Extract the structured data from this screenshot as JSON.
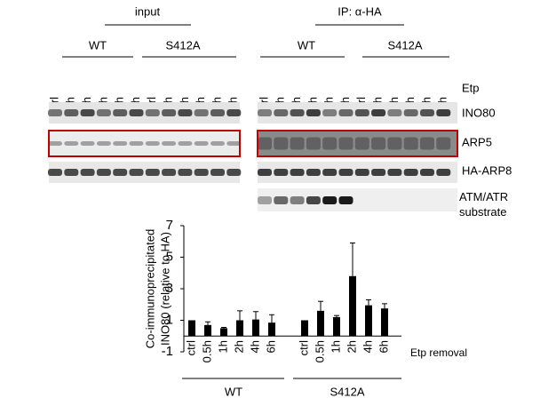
{
  "blots": {
    "header_left": "input",
    "header_right": "IP: α-HA",
    "groups_left": [
      "WT",
      "S412A"
    ],
    "groups_right": [
      "WT",
      "S412A"
    ],
    "lanes": [
      "ctrl",
      "0.5h",
      "1h",
      "2h",
      "4h",
      "6h"
    ],
    "treatment": "Etp",
    "rows": [
      "INO80",
      "ARP5",
      "HA-ARP8",
      "ATM/ATR substrate"
    ]
  },
  "chart_data": {
    "type": "bar",
    "y_label": [
      "Co-immunoprecipitated",
      "INO80 (relative to HA)"
    ],
    "x_label": "Etp removal",
    "categories": [
      "ctrl",
      "0.5h",
      "1h",
      "2h",
      "4h",
      "6h",
      "ctrl",
      "0.5h",
      "1h",
      "2h",
      "4h",
      "6h"
    ],
    "group_labels": [
      "WT",
      "S412A"
    ],
    "values": [
      1.0,
      0.7,
      0.5,
      1.0,
      1.05,
      0.85,
      1.0,
      1.6,
      1.2,
      3.8,
      1.95,
      1.75
    ],
    "errors": [
      0,
      0.2,
      0.05,
      0.6,
      0.5,
      0.5,
      0,
      0.6,
      0.1,
      2.1,
      0.35,
      0.3
    ],
    "color": "#000000",
    "ylim": [
      -1,
      7
    ],
    "yticks": [
      -1,
      1,
      3,
      5,
      7
    ]
  }
}
